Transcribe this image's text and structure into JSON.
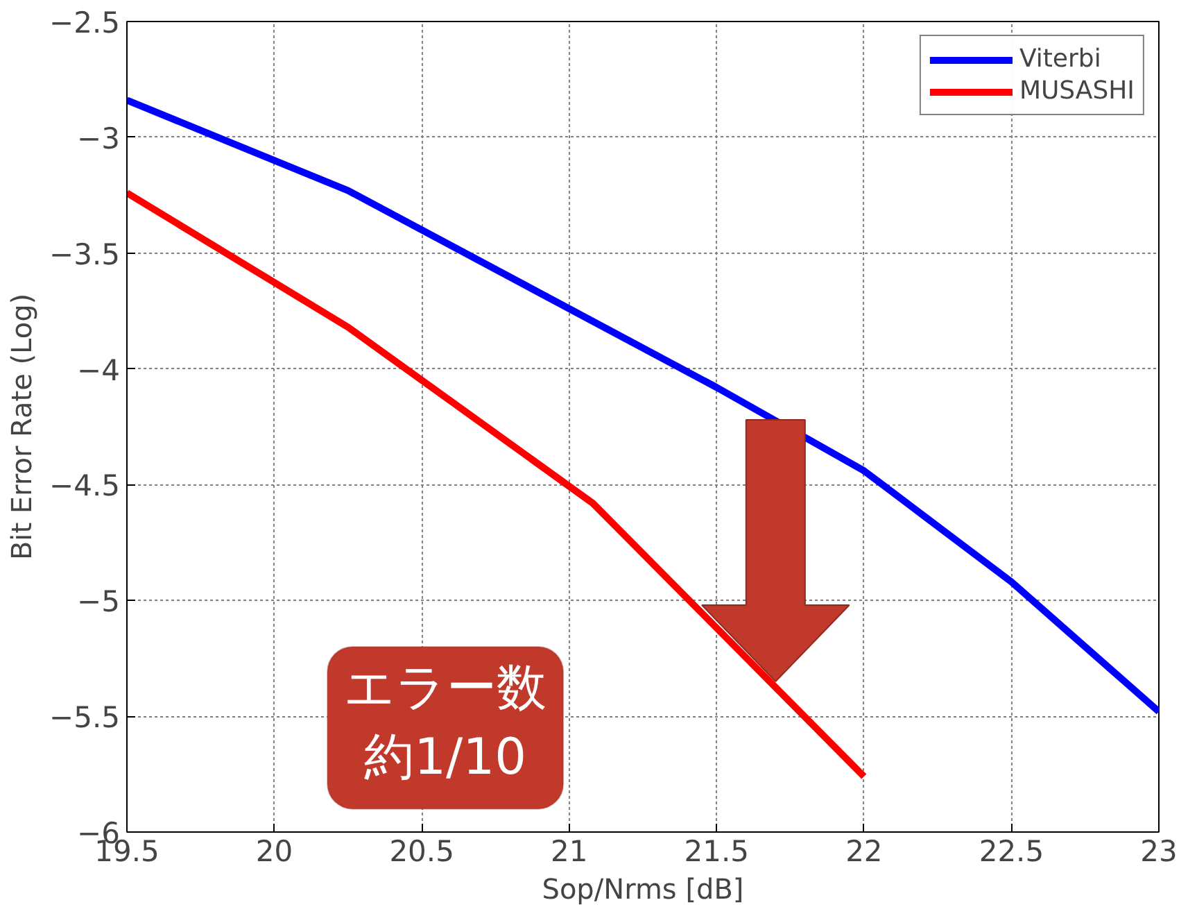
{
  "chart_data": {
    "type": "line",
    "xlabel": "Sop/Nrms [dB]",
    "ylabel": "Bit Error Rate (Log)",
    "xlim": [
      19.5,
      23
    ],
    "ylim": [
      -6,
      -2.5
    ],
    "xticks": [
      19.5,
      20,
      20.5,
      21,
      21.5,
      22,
      22.5,
      23
    ],
    "yticks": [
      -6,
      -5.5,
      -5,
      -4.5,
      -4,
      -3.5,
      -3,
      -2.5
    ],
    "grid": true,
    "legend": "top right",
    "line_style": "solid",
    "series": [
      {
        "name": "Viterbi",
        "color": "#0000ff",
        "x": [
          19.5,
          20.25,
          21.5,
          22,
          22.5,
          23
        ],
        "values": [
          -2.84,
          -3.23,
          -4.08,
          -4.44,
          -4.92,
          -5.48
        ]
      },
      {
        "name": "MUSASHI",
        "color": "#ff0000",
        "x": [
          19.5,
          20.25,
          21.08,
          22
        ],
        "values": [
          -3.24,
          -3.82,
          -4.58,
          -5.76
        ]
      }
    ],
    "annotations": [
      "エラー数",
      "約1/10"
    ]
  }
}
